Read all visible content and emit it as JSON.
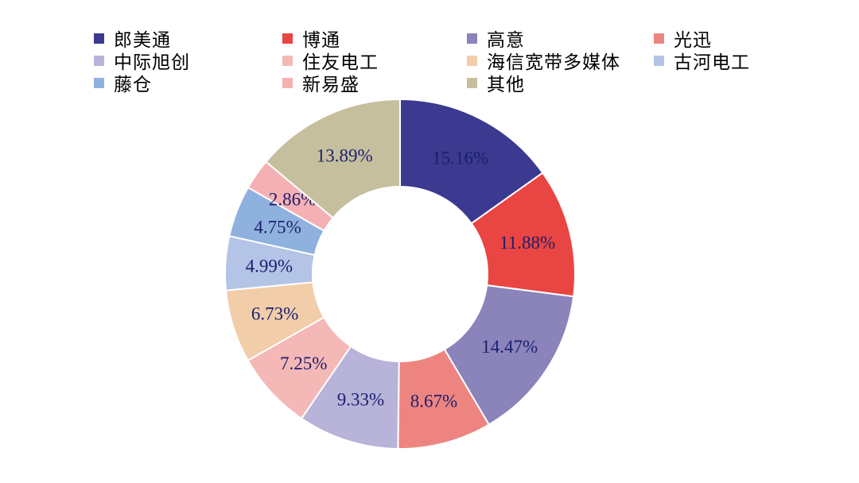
{
  "chart_data": {
    "type": "donut",
    "title": "",
    "legend_position": "top",
    "series": [
      {
        "name": "郎美通",
        "value": 15.16,
        "label": "15.16%",
        "color": "#3b3990"
      },
      {
        "name": "博通",
        "value": 11.88,
        "label": "11.88%",
        "color": "#e94542"
      },
      {
        "name": "高意",
        "value": 14.47,
        "label": "14.47%",
        "color": "#8a84bb"
      },
      {
        "name": "光迅",
        "value": 8.67,
        "label": "8.67%",
        "color": "#ee8480"
      },
      {
        "name": "中际旭创",
        "value": 9.33,
        "label": "9.33%",
        "color": "#b7b3d9"
      },
      {
        "name": "住友电工",
        "value": 7.25,
        "label": "7.25%",
        "color": "#f4b8b6"
      },
      {
        "name": "海信宽带多媒体",
        "value": 6.73,
        "label": "6.73%",
        "color": "#f2cda9"
      },
      {
        "name": "古河电工",
        "value": 4.99,
        "label": "4.99%",
        "color": "#b3c4e6"
      },
      {
        "name": "藤仓",
        "value": 4.75,
        "label": "4.75%",
        "color": "#8fb1de"
      },
      {
        "name": "新易盛",
        "value": 2.86,
        "label": "2.86%",
        "color": "#f4b0b3"
      },
      {
        "name": "其他",
        "value": 13.89,
        "label": "13.89%",
        "color": "#c6bf9e"
      }
    ]
  }
}
